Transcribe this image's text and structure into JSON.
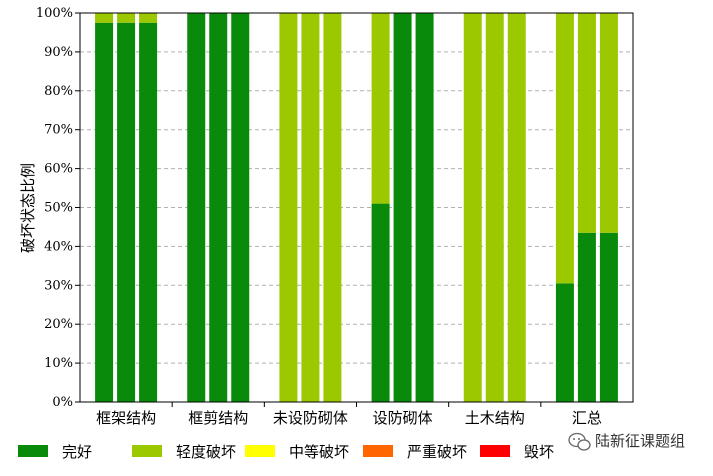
{
  "chart_data": {
    "type": "bar",
    "stacked": true,
    "ylabel": "破坏状态比例",
    "ylim": [
      0,
      100
    ],
    "yticks": [
      "0%",
      "10%",
      "20%",
      "30%",
      "40%",
      "50%",
      "60%",
      "70%",
      "80%",
      "90%",
      "100%"
    ],
    "grid": "horizontal-dashed",
    "categories": [
      "框架结构",
      "框剪结构",
      "未设防砌体",
      "设防砌体",
      "土木结构",
      "汇总"
    ],
    "bars_per_category": 3,
    "series": [
      {
        "name": "完好",
        "color": "#0a8a0a",
        "values": [
          [
            97.5,
            97.5,
            97.5
          ],
          [
            100,
            100,
            100
          ],
          [
            0,
            0,
            0
          ],
          [
            51,
            100,
            100
          ],
          [
            0,
            0,
            0
          ],
          [
            30.5,
            43.5,
            43.5
          ]
        ]
      },
      {
        "name": "轻度破坏",
        "color": "#9cc800",
        "values": [
          [
            2.5,
            2.5,
            2.5
          ],
          [
            0,
            0,
            0
          ],
          [
            100,
            100,
            100
          ],
          [
            49,
            0,
            0
          ],
          [
            100,
            100,
            100
          ],
          [
            69.5,
            56.5,
            56.5
          ]
        ]
      },
      {
        "name": "中等破坏",
        "color": "#ffff00",
        "values": [
          [
            0,
            0,
            0
          ],
          [
            0,
            0,
            0
          ],
          [
            0,
            0,
            0
          ],
          [
            0,
            0,
            0
          ],
          [
            0,
            0,
            0
          ],
          [
            0,
            0,
            0
          ]
        ]
      },
      {
        "name": "严重破坏",
        "color": "#ff6600",
        "values": [
          [
            0,
            0,
            0
          ],
          [
            0,
            0,
            0
          ],
          [
            0,
            0,
            0
          ],
          [
            0,
            0,
            0
          ],
          [
            0,
            0,
            0
          ],
          [
            0,
            0,
            0
          ]
        ]
      },
      {
        "name": "毁坏",
        "color": "#ff0000",
        "values": [
          [
            0,
            0,
            0
          ],
          [
            0,
            0,
            0
          ],
          [
            0,
            0,
            0
          ],
          [
            0,
            0,
            0
          ],
          [
            0,
            0,
            0
          ],
          [
            0,
            0,
            0
          ]
        ]
      }
    ],
    "legend_position": "bottom",
    "legend_labels": [
      "完好",
      "轻度破坏",
      "中等破坏",
      "严重破坏",
      "毁坏"
    ],
    "watermark": "陆新征课题组"
  }
}
